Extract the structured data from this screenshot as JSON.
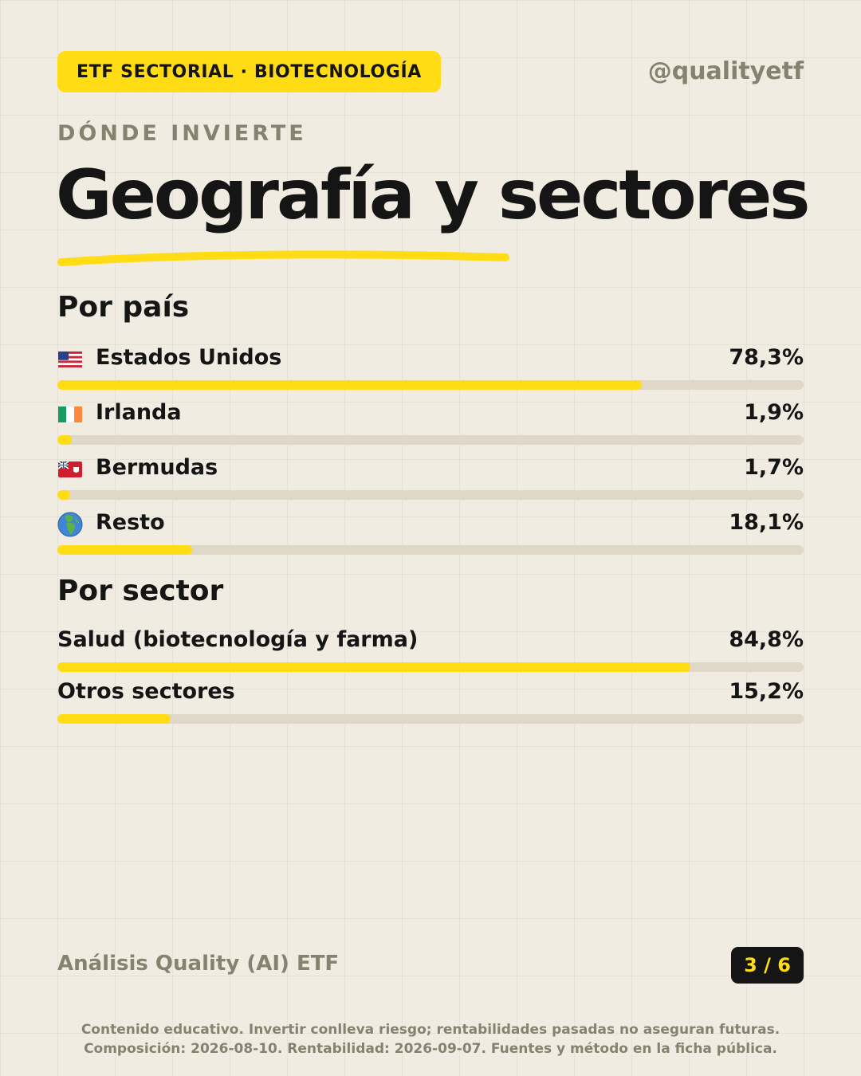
{
  "header": {
    "badge": "ETF SECTORIAL · BIOTECNOLOGÍA",
    "handle": "@qualityetf"
  },
  "eyebrow": "DÓNDE INVIERTE",
  "title": "Geografía y sectores",
  "colors": {
    "accent": "#ffdc14",
    "track": "#dfd8c8",
    "muted": "#85826f",
    "text": "#151515"
  },
  "by_country": {
    "heading": "Por país",
    "items": [
      {
        "flag_icon": "us-flag-icon",
        "name": "Estados Unidos",
        "pct_label": "78,3%",
        "value": 78.3
      },
      {
        "flag_icon": "ireland-flag-icon",
        "name": "Irlanda",
        "pct_label": "1,9%",
        "value": 1.9
      },
      {
        "flag_icon": "bermuda-flag-icon",
        "name": "Bermudas",
        "pct_label": "1,7%",
        "value": 1.7
      },
      {
        "flag_icon": "globe-africa-europe-icon",
        "name": "Resto",
        "pct_label": "18,1%",
        "value": 18.1
      }
    ]
  },
  "by_sector": {
    "heading": "Por sector",
    "items": [
      {
        "name": "Salud (biotecnología y farma)",
        "pct_label": "84,8%",
        "value": 84.8
      },
      {
        "name": "Otros sectores",
        "pct_label": "15,2%",
        "value": 15.2
      }
    ]
  },
  "footer": {
    "brand": "Análisis Quality (AI) ETF",
    "page_indicator": "3 / 6",
    "disclaimer_line1": "Contenido educativo. Invertir conlleva riesgo; rentabilidades pasadas no aseguran futuras.",
    "disclaimer_line2": "Composición: 2026-08-10. Rentabilidad: 2026-09-07. Fuentes y método en la ficha pública."
  }
}
